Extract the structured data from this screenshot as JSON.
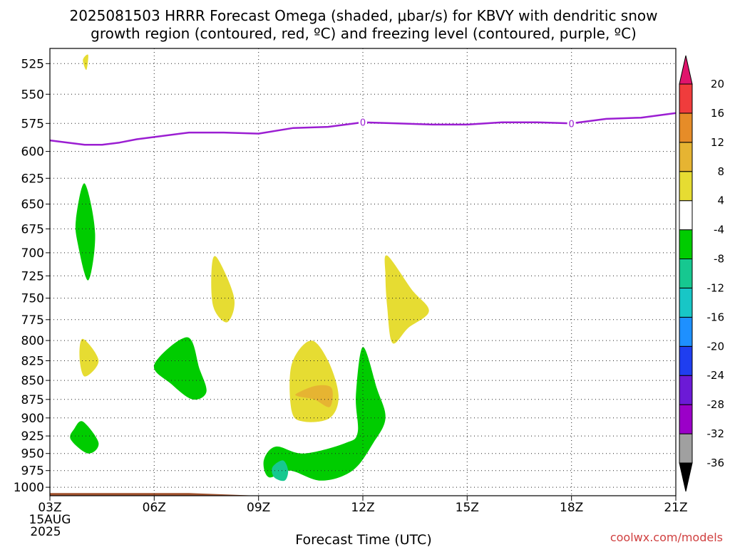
{
  "chart_data": {
    "type": "heatmap",
    "title_line1": "2025081503 HRRR Forecast Omega (shaded, μbar/s) for KBVY with dendritic snow",
    "title_line2": "growth region (contoured, red, ºC) and freezing level (contoured, purple, ºC)",
    "xlabel": "Forecast Time (UTC)",
    "x_date_line1": "15AUG",
    "x_date_line2": "2025",
    "x_ticks": [
      {
        "value": 3,
        "label": "03Z"
      },
      {
        "value": 6,
        "label": "06Z"
      },
      {
        "value": 9,
        "label": "09Z"
      },
      {
        "value": 12,
        "label": "12Z"
      },
      {
        "value": 15,
        "label": "15Z"
      },
      {
        "value": 18,
        "label": "18Z"
      },
      {
        "value": 21,
        "label": "21Z"
      }
    ],
    "xlim": [
      3,
      21
    ],
    "y_ticks": [
      525,
      550,
      575,
      600,
      625,
      650,
      675,
      700,
      725,
      750,
      775,
      800,
      825,
      850,
      875,
      900,
      925,
      950,
      975,
      1000
    ],
    "ylim": [
      1013,
      513
    ],
    "y_scale": "log-pressure",
    "grid": true,
    "credit": "coolwx.com/models",
    "colorbar": {
      "colors": [
        "#000000",
        "#a0a0a0",
        "#9b00c8",
        "#6c1ad6",
        "#1f3ef0",
        "#1e90ff",
        "#18c6c6",
        "#16c890",
        "#00cc00",
        "#ffffff",
        "#e6dc32",
        "#e6b432",
        "#e68c28",
        "#f03c3c",
        "#e0146c"
      ],
      "labels": [
        "-36",
        "-32",
        "-28",
        "-24",
        "-20",
        "-16",
        "-12",
        "-8",
        "-4",
        "4",
        "8",
        "12",
        "16",
        "20"
      ]
    },
    "freezing_level": {
      "label": "0",
      "color": "#9b1ed2",
      "label_points": [
        {
          "x": 12,
          "p": 574
        },
        {
          "x": 18,
          "p": 575
        }
      ],
      "points": [
        [
          3,
          590
        ],
        [
          4,
          594
        ],
        [
          4.5,
          594
        ],
        [
          5,
          592
        ],
        [
          5.5,
          589
        ],
        [
          6,
          587
        ],
        [
          7,
          583
        ],
        [
          8,
          583
        ],
        [
          9,
          584
        ],
        [
          10,
          579
        ],
        [
          11,
          578
        ],
        [
          12,
          574
        ],
        [
          13,
          575
        ],
        [
          14,
          576
        ],
        [
          15,
          576
        ],
        [
          16,
          574
        ],
        [
          17,
          574
        ],
        [
          18,
          575
        ],
        [
          19,
          571
        ],
        [
          20,
          570
        ],
        [
          21,
          566
        ]
      ]
    },
    "omega_regions": [
      {
        "value_range": "4 to 8",
        "color": "#e6dc32",
        "points": [
          [
            3.95,
            522
          ],
          [
            4.1,
            518
          ],
          [
            4.05,
            530
          ]
        ]
      },
      {
        "value_range": "-8 to -4",
        "color": "#00cc00",
        "points": [
          [
            4,
            630
          ],
          [
            4.3,
            680
          ],
          [
            4.1,
            730
          ],
          [
            3.8,
            690
          ],
          [
            3.75,
            665
          ]
        ]
      },
      {
        "value_range": "4 to 8",
        "color": "#e6dc32",
        "points": [
          [
            7.8,
            705
          ],
          [
            8.3,
            750
          ],
          [
            8.1,
            778
          ],
          [
            7.7,
            760
          ],
          [
            7.65,
            718
          ]
        ]
      },
      {
        "value_range": "4 to 8",
        "color": "#e6dc32",
        "points": [
          [
            12.7,
            703
          ],
          [
            13.4,
            740
          ],
          [
            13.9,
            765
          ],
          [
            13.3,
            785
          ],
          [
            12.85,
            803
          ],
          [
            12.7,
            760
          ],
          [
            12.65,
            725
          ]
        ]
      },
      {
        "value_range": "4 to 8",
        "color": "#e6dc32",
        "points": [
          [
            3.95,
            798
          ],
          [
            4.4,
            825
          ],
          [
            4,
            845
          ],
          [
            3.85,
            820
          ]
        ]
      },
      {
        "value_range": "-8 to -4",
        "color": "#00cc00",
        "points": [
          [
            6,
            830
          ],
          [
            6.95,
            796
          ],
          [
            7.3,
            835
          ],
          [
            7.5,
            865
          ],
          [
            7.1,
            875
          ],
          [
            6.5,
            855
          ]
        ]
      },
      {
        "value_range": "4 to 8",
        "color": "#e6dc32",
        "points": [
          [
            10.5,
            800
          ],
          [
            11,
            825
          ],
          [
            11.3,
            870
          ],
          [
            11.05,
            900
          ],
          [
            10.3,
            905
          ],
          [
            9.95,
            890
          ],
          [
            9.95,
            830
          ]
        ]
      },
      {
        "value_range": "8 to 12",
        "color": "#e6b432",
        "points": [
          [
            10.1,
            867
          ],
          [
            10.65,
            857
          ],
          [
            11.1,
            860
          ],
          [
            11.05,
            885
          ],
          [
            10.6,
            875
          ],
          [
            10.15,
            871
          ]
        ]
      },
      {
        "value_range": "-8 to -4",
        "color": "#00cc00",
        "points": [
          [
            3.95,
            905
          ],
          [
            4.4,
            935
          ],
          [
            4.1,
            950
          ],
          [
            3.6,
            930
          ],
          [
            3.7,
            915
          ]
        ]
      },
      {
        "value_range": "-8 to -4",
        "color": "#00cc00",
        "points": [
          [
            12,
            808
          ],
          [
            12.4,
            860
          ],
          [
            12.65,
            900
          ],
          [
            12.3,
            935
          ],
          [
            11.7,
            975
          ],
          [
            10.8,
            990
          ],
          [
            9.9,
            975
          ],
          [
            9.3,
            985
          ],
          [
            9.15,
            960
          ],
          [
            9.5,
            940
          ],
          [
            10.3,
            950
          ],
          [
            11.5,
            935
          ],
          [
            11.85,
            920
          ],
          [
            11.8,
            870
          ]
        ]
      },
      {
        "value_range": "-12 to -8",
        "color": "#16c890",
        "points": [
          [
            9.4,
            970
          ],
          [
            9.7,
            960
          ],
          [
            9.85,
            975
          ],
          [
            9.75,
            990
          ],
          [
            9.45,
            985
          ]
        ]
      }
    ],
    "ground": {
      "color": "#a0522d",
      "points": [
        [
          3,
          1009
        ],
        [
          7,
          1009
        ],
        [
          9,
          1013
        ],
        [
          12,
          1013
        ],
        [
          21,
          1013
        ]
      ]
    }
  }
}
